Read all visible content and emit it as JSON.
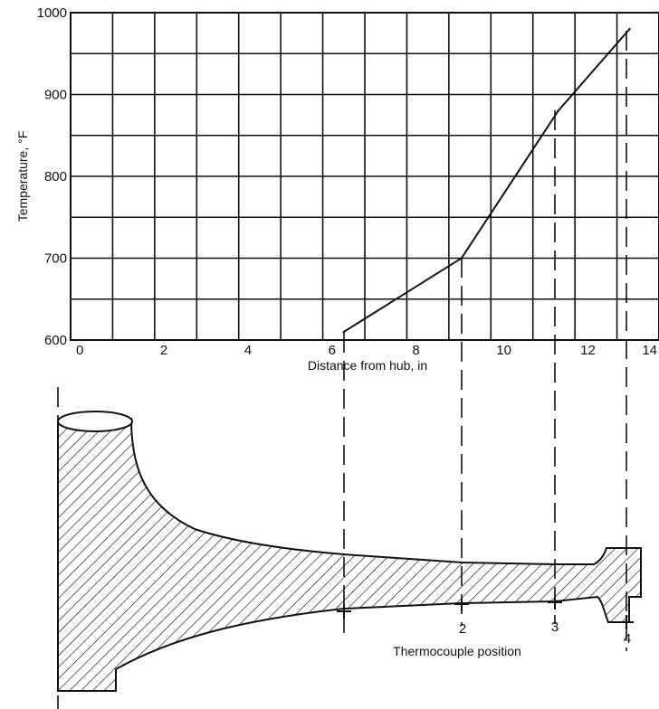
{
  "chart_data": {
    "type": "line",
    "title": "",
    "xlabel": "Distance from hub, in",
    "ylabel": "Temperature, °F",
    "xlim": [
      0,
      14
    ],
    "ylim": [
      600,
      1000
    ],
    "x_ticks": [
      "0",
      "2",
      "4",
      "6",
      "8",
      "10",
      "12",
      "14"
    ],
    "y_ticks": [
      "600",
      "700",
      "800",
      "900",
      "1000"
    ],
    "grid": true,
    "series": [
      {
        "x": [
          6.5,
          9.3,
          11.6,
          13.3
        ],
        "y": [
          610,
          700,
          880,
          980
        ]
      }
    ]
  },
  "diagram": {
    "caption": "Thermocouple position",
    "positions": [
      "2",
      "3",
      "4"
    ]
  }
}
